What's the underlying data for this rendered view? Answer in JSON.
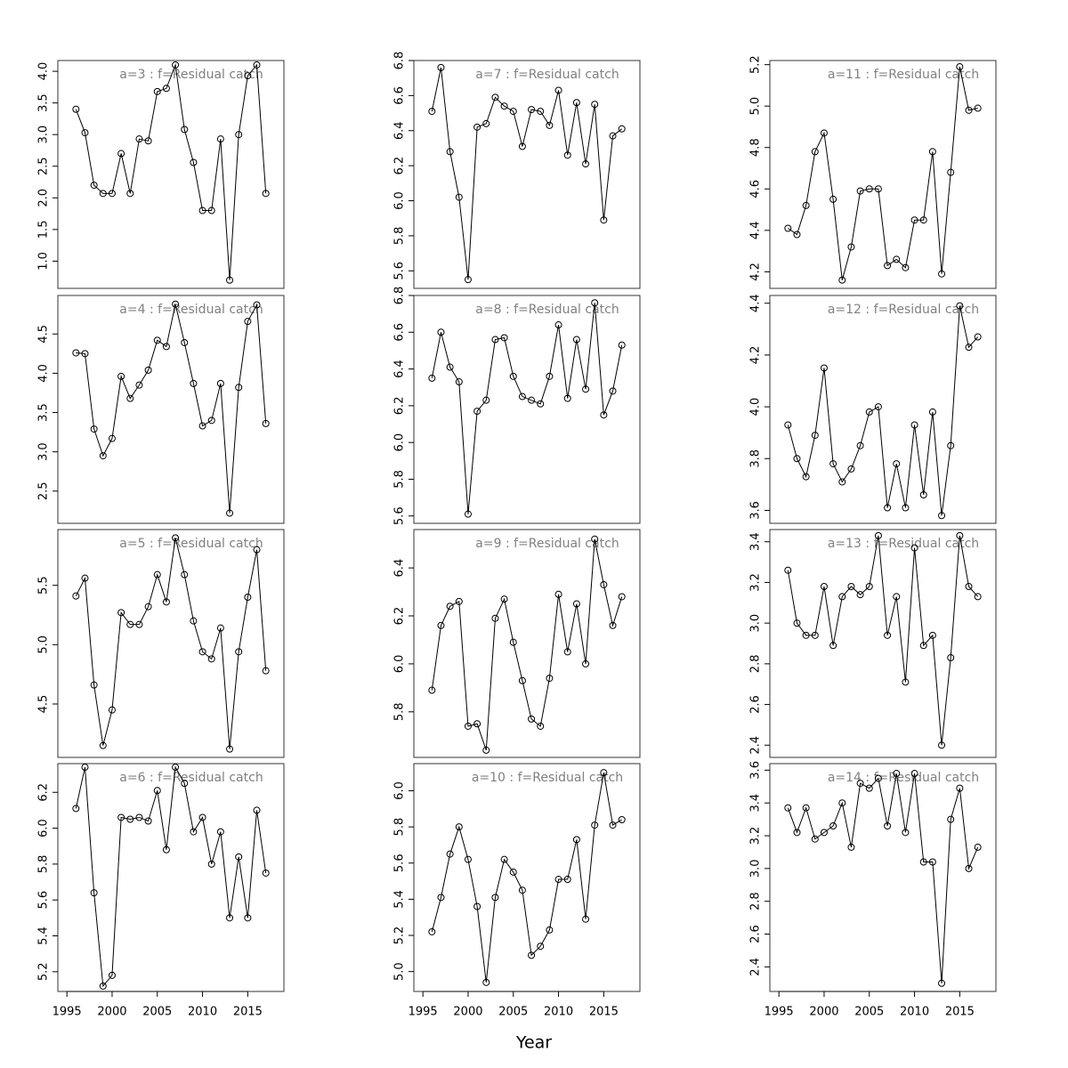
{
  "chart_data": {
    "type": "line",
    "xlabel": "Year",
    "x": [
      1996,
      1997,
      1998,
      1999,
      2000,
      2001,
      2002,
      2003,
      2004,
      2005,
      2006,
      2007,
      2008,
      2009,
      2010,
      2011,
      2012,
      2013,
      2014,
      2015,
      2016,
      2017
    ],
    "xlim": [
      1994,
      2019
    ],
    "xticks": [
      1995,
      2000,
      2005,
      2010,
      2015
    ],
    "panels": [
      {
        "title": "a=3  :  f=Residual catch",
        "ylim": [
          0.57,
          4.17
        ],
        "yticks": [
          {
            "value": 1,
            "label": "1.0"
          },
          1.5,
          {
            "value": 2,
            "label": "2.0"
          },
          2.5,
          {
            "value": 3,
            "label": "3.0"
          },
          3.5,
          {
            "value": 4,
            "label": "4.0"
          }
        ],
        "values": [
          3.4,
          3.03,
          2.2,
          2.07,
          2.07,
          2.7,
          2.07,
          2.93,
          2.9,
          3.68,
          3.73,
          4.1,
          3.08,
          2.56,
          1.8,
          1.8,
          2.93,
          0.7,
          3.0,
          3.93,
          4.1,
          2.07
        ]
      },
      {
        "title": "a=4  :  f=Residual catch",
        "ylim": [
          2.09,
          4.99
        ],
        "yticks": [
          2.5,
          {
            "value": 3,
            "label": "3.0"
          },
          3.5,
          {
            "value": 4,
            "label": "4.0"
          },
          4.5
        ],
        "values": [
          4.26,
          4.25,
          3.29,
          2.95,
          3.17,
          3.96,
          3.68,
          3.85,
          4.04,
          4.42,
          4.34,
          4.88,
          4.39,
          3.87,
          3.33,
          3.4,
          3.87,
          2.22,
          3.82,
          4.66,
          4.87,
          3.36
        ]
      },
      {
        "title": "a=5  :  f=Residual catch",
        "ylim": [
          4.05,
          5.97
        ],
        "yticks": [
          4.5,
          {
            "value": 5,
            "label": "5.0"
          },
          5.5
        ],
        "values": [
          5.41,
          5.56,
          4.66,
          4.15,
          4.45,
          5.27,
          5.17,
          5.17,
          5.32,
          5.59,
          5.36,
          5.9,
          5.59,
          5.2,
          4.94,
          4.88,
          5.14,
          4.12,
          4.94,
          5.4,
          5.8,
          4.78
        ]
      },
      {
        "title": "a=6  :  f=Residual catch",
        "ylim": [
          5.09,
          6.36
        ],
        "yticks": [
          5.2,
          5.4,
          5.6,
          5.8,
          {
            "value": 6,
            "label": "6.0"
          },
          6.2
        ],
        "values": [
          6.11,
          6.34,
          5.64,
          5.12,
          5.18,
          6.06,
          6.05,
          6.06,
          6.04,
          6.21,
          5.88,
          6.34,
          6.25,
          5.98,
          6.06,
          5.8,
          5.98,
          5.5,
          5.84,
          5.5,
          6.1,
          5.75
        ]
      },
      {
        "title": "a=7  :  f=Residual catch",
        "ylim": [
          5.5,
          6.8
        ],
        "yticks": [
          5.6,
          5.8,
          {
            "value": 6,
            "label": "6.0"
          },
          6.2,
          6.4,
          6.6,
          6.8
        ],
        "values": [
          6.51,
          6.76,
          6.28,
          6.02,
          5.55,
          6.42,
          6.44,
          6.59,
          6.54,
          6.51,
          6.31,
          6.52,
          6.51,
          6.43,
          6.63,
          6.26,
          6.56,
          6.21,
          6.55,
          5.89,
          6.37,
          6.41
        ]
      },
      {
        "title": "a=8  :  f=Residual catch",
        "ylim": [
          5.56,
          6.8
        ],
        "yticks": [
          5.6,
          5.8,
          {
            "value": 6,
            "label": "6.0"
          },
          6.2,
          6.4,
          6.6,
          6.8
        ],
        "values": [
          6.35,
          6.6,
          6.41,
          6.33,
          5.61,
          6.17,
          6.23,
          6.56,
          6.57,
          6.36,
          6.25,
          6.23,
          6.21,
          6.36,
          6.64,
          6.24,
          6.56,
          6.29,
          6.76,
          6.15,
          6.28,
          6.53
        ]
      },
      {
        "title": "a=9  :  f=Residual catch",
        "ylim": [
          5.61,
          6.56
        ],
        "yticks": [
          5.8,
          {
            "value": 6,
            "label": "6.0"
          },
          6.2,
          6.4
        ],
        "values": [
          5.89,
          6.16,
          6.24,
          6.26,
          5.74,
          5.75,
          5.64,
          6.19,
          6.27,
          6.09,
          5.93,
          5.77,
          5.74,
          5.94,
          6.29,
          6.05,
          6.25,
          6.0,
          6.52,
          6.33,
          6.16,
          6.28
        ]
      },
      {
        "title": "a=10  :  f=Residual catch",
        "ylim": [
          4.89,
          6.15
        ],
        "yticks": [
          {
            "value": 5,
            "label": "5.0"
          },
          5.2,
          5.4,
          5.6,
          5.8,
          {
            "value": 6,
            "label": "6.0"
          }
        ],
        "values": [
          5.22,
          5.41,
          5.65,
          5.8,
          5.62,
          5.36,
          4.94,
          5.41,
          5.62,
          5.55,
          5.45,
          5.09,
          5.14,
          5.23,
          5.51,
          5.51,
          5.73,
          5.29,
          5.81,
          6.1,
          5.81,
          5.84
        ]
      },
      {
        "title": "a=11  :  f=Residual catch",
        "ylim": [
          4.12,
          5.22
        ],
        "yticks": [
          4.2,
          4.4,
          4.6,
          4.8,
          {
            "value": 5,
            "label": "5.0"
          },
          5.2
        ],
        "values": [
          4.41,
          4.38,
          4.52,
          4.78,
          4.87,
          4.55,
          4.16,
          4.32,
          4.59,
          4.6,
          4.6,
          4.23,
          4.26,
          4.22,
          4.45,
          4.45,
          4.78,
          4.19,
          4.68,
          5.19,
          4.98,
          4.99
        ]
      },
      {
        "title": "a=12  :  f=Residual catch",
        "ylim": [
          3.55,
          4.43
        ],
        "yticks": [
          3.6,
          3.8,
          {
            "value": 4,
            "label": "4.0"
          },
          4.2,
          4.4
        ],
        "values": [
          3.93,
          3.8,
          3.73,
          3.89,
          4.15,
          3.78,
          3.71,
          3.76,
          3.85,
          3.98,
          4.0,
          3.61,
          3.78,
          3.61,
          3.93,
          3.66,
          3.98,
          3.58,
          3.85,
          4.39,
          4.23,
          4.27
        ]
      },
      {
        "title": "a=13  :  f=Residual catch",
        "ylim": [
          2.34,
          3.46
        ],
        "yticks": [
          2.4,
          2.6,
          2.8,
          {
            "value": 3,
            "label": "3.0"
          },
          3.2,
          3.4
        ],
        "values": [
          3.26,
          3.0,
          2.94,
          2.94,
          3.18,
          2.89,
          3.13,
          3.18,
          3.14,
          3.18,
          3.43,
          2.94,
          3.13,
          2.71,
          3.37,
          2.89,
          2.94,
          2.4,
          2.83,
          3.43,
          3.18,
          3.13
        ]
      },
      {
        "title": "a=14  :  f=Residual catch",
        "ylim": [
          2.25,
          3.64
        ],
        "yticks": [
          2.4,
          2.6,
          2.8,
          {
            "value": 3,
            "label": "3.0"
          },
          3.2,
          3.4,
          3.6
        ],
        "values": [
          3.37,
          3.22,
          3.37,
          3.18,
          3.22,
          3.26,
          3.4,
          3.13,
          3.52,
          3.49,
          3.55,
          3.26,
          3.58,
          3.22,
          3.58,
          3.04,
          3.04,
          2.3,
          3.3,
          3.49,
          3.0,
          3.13
        ]
      }
    ]
  }
}
